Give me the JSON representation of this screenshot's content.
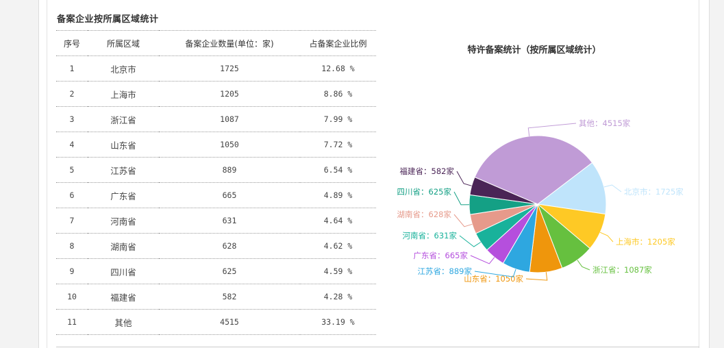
{
  "section_title": "备案企业按所属区域统计",
  "table": {
    "headers": [
      "序号",
      "所属区域",
      "备案企业数量(单位：家)",
      "占备案企业比例"
    ],
    "rows": [
      {
        "idx": "1",
        "region": "北京市",
        "count": "1725",
        "ratio": "12.68 %"
      },
      {
        "idx": "2",
        "region": "上海市",
        "count": "1205",
        "ratio": "8.86 %"
      },
      {
        "idx": "3",
        "region": "浙江省",
        "count": "1087",
        "ratio": "7.99 %"
      },
      {
        "idx": "4",
        "region": "山东省",
        "count": "1050",
        "ratio": "7.72 %"
      },
      {
        "idx": "5",
        "region": "江苏省",
        "count": "889",
        "ratio": "6.54 %"
      },
      {
        "idx": "6",
        "region": "广东省",
        "count": "665",
        "ratio": "4.89 %"
      },
      {
        "idx": "7",
        "region": "河南省",
        "count": "631",
        "ratio": "4.64 %"
      },
      {
        "idx": "8",
        "region": "湖南省",
        "count": "628",
        "ratio": "4.62 %"
      },
      {
        "idx": "9",
        "region": "四川省",
        "count": "625",
        "ratio": "4.59 %"
      },
      {
        "idx": "10",
        "region": "福建省",
        "count": "582",
        "ratio": "4.28 %"
      },
      {
        "idx": "11",
        "region": "其他",
        "count": "4515",
        "ratio": "33.19 %"
      }
    ]
  },
  "chart_data": {
    "type": "pie",
    "title": "特许备案统计（按所属区域统计）",
    "unit": "家",
    "slices": [
      {
        "name": "北京市",
        "value": 1725,
        "color": "#bfe4fb",
        "label": "北京市：1725家"
      },
      {
        "name": "上海市",
        "value": 1205,
        "color": "#fec925",
        "label": "上海市：1205家"
      },
      {
        "name": "浙江省",
        "value": 1087,
        "color": "#66c03f",
        "label": "浙江省：1087家"
      },
      {
        "name": "山东省",
        "value": 1050,
        "color": "#ef960c",
        "label": "山东省：1050家"
      },
      {
        "name": "江苏省",
        "value": 889,
        "color": "#2ea7e0",
        "label": "江苏省：889家"
      },
      {
        "name": "广东省",
        "value": 665,
        "color": "#b54fdd",
        "label": "广东省：665家"
      },
      {
        "name": "河南省",
        "value": 631,
        "color": "#19b29b",
        "label": "河南省：631家"
      },
      {
        "name": "湖南省",
        "value": 628,
        "color": "#e69a8b",
        "label": "湖南省：628家"
      },
      {
        "name": "四川省",
        "value": 625,
        "color": "#14a085",
        "label": "四川省：625家"
      },
      {
        "name": "福建省",
        "value": 582,
        "color": "#4a2456",
        "label": "福建省：582家"
      },
      {
        "name": "其他",
        "value": 4515,
        "color": "#c09bd6",
        "label": "其他：4515家"
      }
    ]
  }
}
